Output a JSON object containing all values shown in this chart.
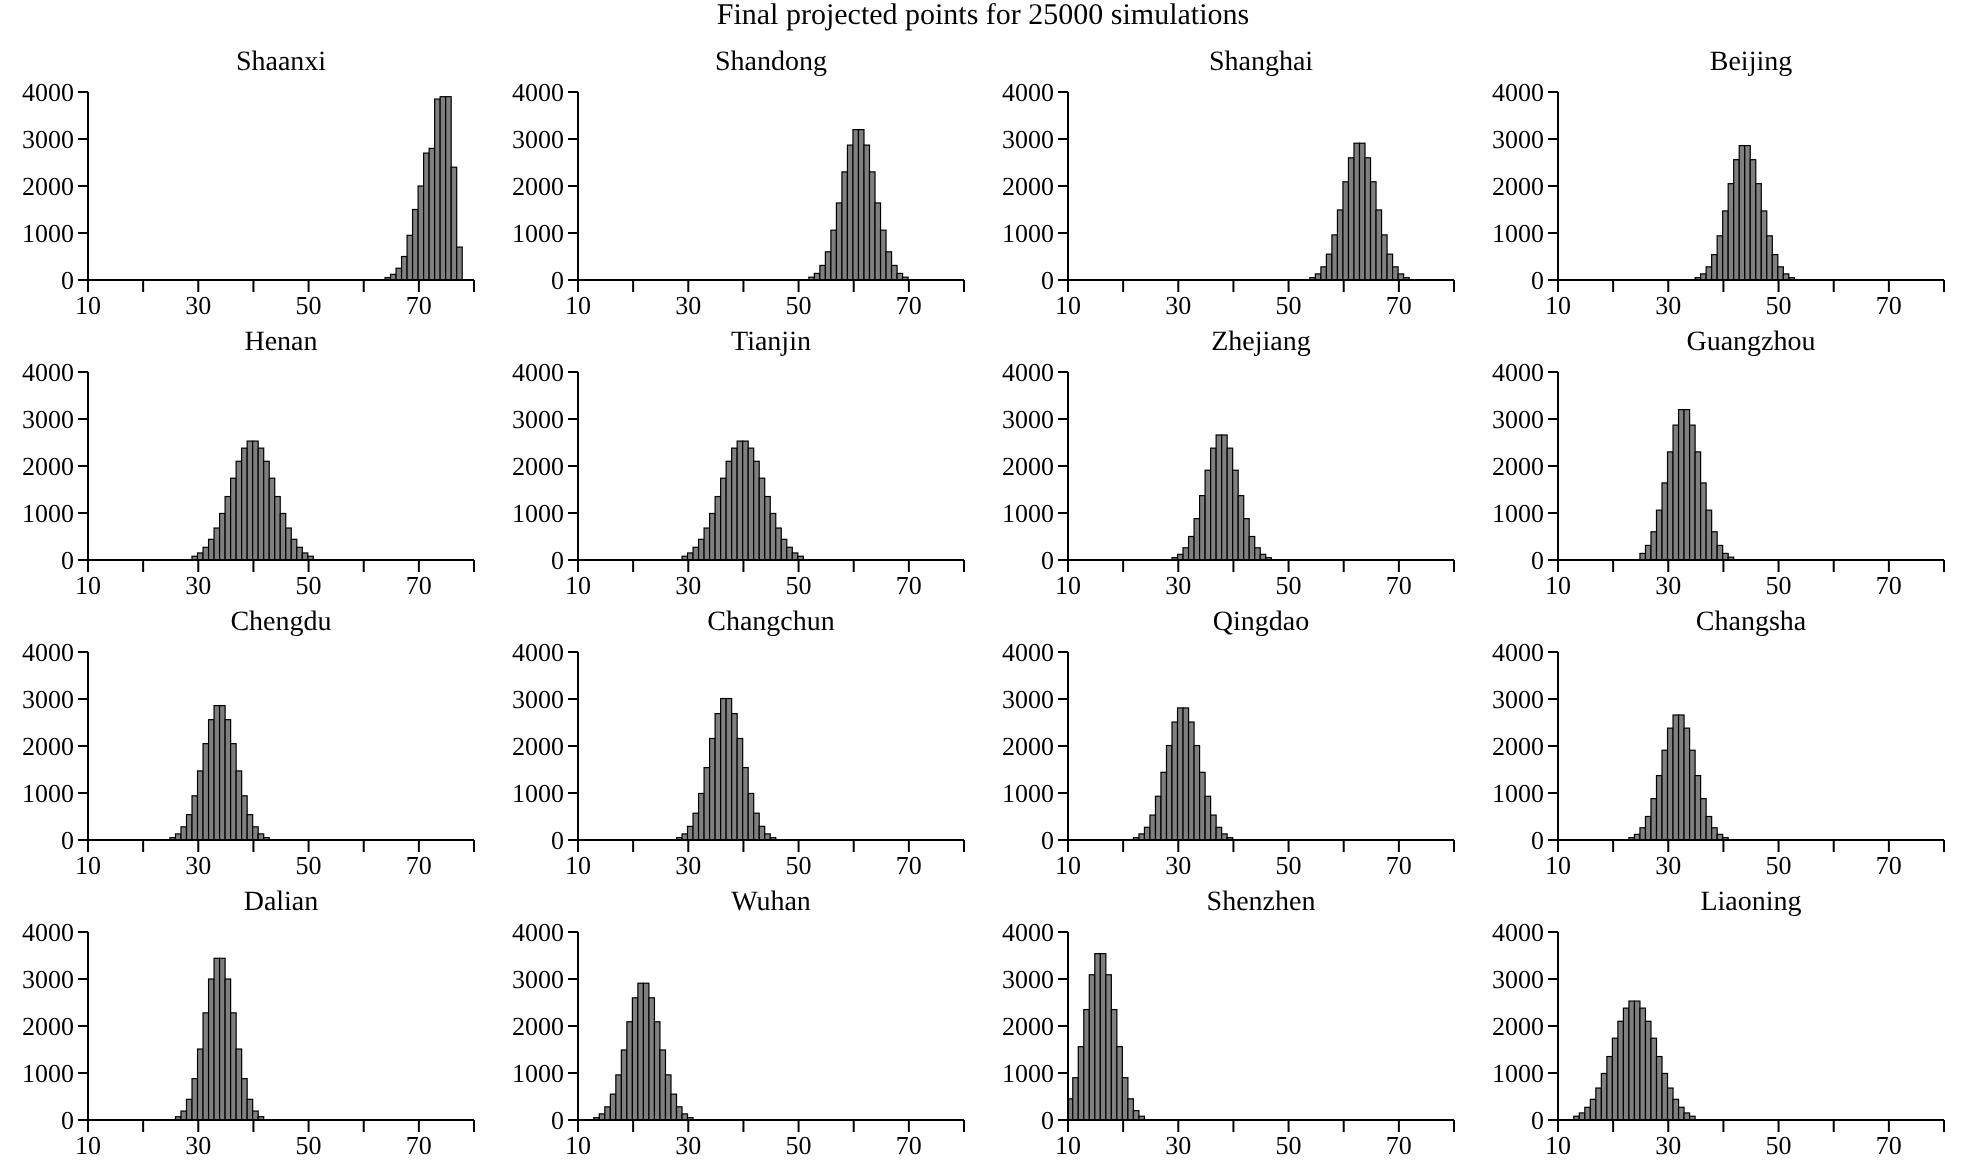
{
  "chart_data": [
    {
      "type": "other",
      "title": "Final projected points for 25000 simulations"
    },
    {
      "type": "histogram",
      "title": "Shaanxi",
      "color": "#808080",
      "xlim": [
        10,
        80
      ],
      "xticks": [
        10,
        {
          "value": 20,
          "label": null
        },
        30,
        {
          "value": 40,
          "label": null
        },
        50,
        {
          "value": 60,
          "label": null
        },
        70,
        {
          "value": 80,
          "label": null
        }
      ],
      "ylim": [
        0,
        4000
      ],
      "yticks": [
        0,
        1000,
        2000,
        3000,
        4000
      ],
      "bins": [
        64,
        65,
        66,
        67,
        68,
        69,
        70,
        71,
        72,
        73,
        74,
        75,
        76,
        77,
        78
      ],
      "values": [
        50,
        120,
        250,
        500,
        950,
        1500,
        2000,
        2700,
        2800,
        3850,
        3900,
        3900,
        2400,
        700
      ]
    },
    {
      "type": "histogram",
      "title": "Shandong",
      "color": "#808080",
      "xlim": [
        10,
        80
      ],
      "xticks": [
        10,
        {
          "value": 20,
          "label": null
        },
        30,
        {
          "value": 40,
          "label": null
        },
        50,
        {
          "value": 60,
          "label": null
        },
        70,
        {
          "value": 80,
          "label": null
        }
      ],
      "ylim": [
        0,
        4000
      ],
      "yticks": [
        0,
        1000,
        2000,
        3000,
        4000
      ],
      "bins": [
        52,
        53,
        54,
        55,
        56,
        57,
        58,
        59,
        60,
        61,
        62,
        63,
        64,
        65,
        66,
        67,
        68,
        69,
        70
      ],
      "values": [
        60,
        140,
        310,
        600,
        1060,
        1640,
        2300,
        2870,
        3200,
        3200,
        2870,
        2300,
        1640,
        1060,
        600,
        310,
        140,
        60
      ]
    },
    {
      "type": "histogram",
      "title": "Shanghai",
      "color": "#808080",
      "xlim": [
        10,
        80
      ],
      "xticks": [
        10,
        {
          "value": 20,
          "label": null
        },
        30,
        {
          "value": 40,
          "label": null
        },
        50,
        {
          "value": 60,
          "label": null
        },
        70,
        {
          "value": 80,
          "label": null
        }
      ],
      "ylim": [
        0,
        4000
      ],
      "yticks": [
        0,
        1000,
        2000,
        3000,
        4000
      ],
      "bins": [
        54,
        55,
        56,
        57,
        58,
        59,
        60,
        61,
        62,
        63,
        64,
        65,
        66,
        67,
        68,
        69,
        70,
        71,
        72
      ],
      "values": [
        50,
        130,
        280,
        550,
        960,
        1490,
        2090,
        2600,
        2910,
        2910,
        2600,
        2090,
        1490,
        960,
        550,
        280,
        130,
        50
      ]
    },
    {
      "type": "histogram",
      "title": "Beijing",
      "color": "#808080",
      "xlim": [
        10,
        80
      ],
      "xticks": [
        10,
        {
          "value": 20,
          "label": null
        },
        30,
        {
          "value": 40,
          "label": null
        },
        50,
        {
          "value": 60,
          "label": null
        },
        70,
        {
          "value": 80,
          "label": null
        }
      ],
      "ylim": [
        0,
        4000
      ],
      "yticks": [
        0,
        1000,
        2000,
        3000,
        4000
      ],
      "bins": [
        35,
        36,
        37,
        38,
        39,
        40,
        41,
        42,
        43,
        44,
        45,
        46,
        47,
        48,
        49,
        50,
        51,
        52,
        53
      ],
      "values": [
        50,
        130,
        280,
        540,
        940,
        1470,
        2050,
        2560,
        2860,
        2860,
        2560,
        2050,
        1470,
        940,
        540,
        280,
        130,
        50
      ]
    },
    {
      "type": "histogram",
      "title": "Henan",
      "color": "#808080",
      "xlim": [
        10,
        80
      ],
      "xticks": [
        10,
        {
          "value": 20,
          "label": null
        },
        30,
        {
          "value": 40,
          "label": null
        },
        50,
        {
          "value": 60,
          "label": null
        },
        70,
        {
          "value": 80,
          "label": null
        }
      ],
      "ylim": [
        0,
        4000
      ],
      "yticks": [
        0,
        1000,
        2000,
        3000,
        4000
      ],
      "bins": [
        29,
        30,
        31,
        32,
        33,
        34,
        35,
        36,
        37,
        38,
        39,
        40,
        41,
        42,
        43,
        44,
        45,
        46,
        47,
        48,
        49,
        50,
        51
      ],
      "values": [
        80,
        150,
        270,
        440,
        680,
        990,
        1350,
        1740,
        2100,
        2380,
        2530,
        2530,
        2380,
        2100,
        1740,
        1350,
        990,
        680,
        440,
        270,
        150,
        80
      ]
    },
    {
      "type": "histogram",
      "title": "Tianjin",
      "color": "#808080",
      "xlim": [
        10,
        80
      ],
      "xticks": [
        10,
        {
          "value": 20,
          "label": null
        },
        30,
        {
          "value": 40,
          "label": null
        },
        50,
        {
          "value": 60,
          "label": null
        },
        70,
        {
          "value": 80,
          "label": null
        }
      ],
      "ylim": [
        0,
        4000
      ],
      "yticks": [
        0,
        1000,
        2000,
        3000,
        4000
      ],
      "bins": [
        29,
        30,
        31,
        32,
        33,
        34,
        35,
        36,
        37,
        38,
        39,
        40,
        41,
        42,
        43,
        44,
        45,
        46,
        47,
        48,
        49,
        50,
        51
      ],
      "values": [
        80,
        150,
        270,
        440,
        680,
        990,
        1350,
        1740,
        2100,
        2380,
        2530,
        2530,
        2380,
        2100,
        1740,
        1350,
        990,
        680,
        440,
        270,
        150,
        80
      ]
    },
    {
      "type": "histogram",
      "title": "Zhejiang",
      "color": "#808080",
      "xlim": [
        10,
        80
      ],
      "xticks": [
        10,
        {
          "value": 20,
          "label": null
        },
        30,
        {
          "value": 40,
          "label": null
        },
        50,
        {
          "value": 60,
          "label": null
        },
        70,
        {
          "value": 80,
          "label": null
        }
      ],
      "ylim": [
        0,
        4000
      ],
      "yticks": [
        0,
        1000,
        2000,
        3000,
        4000
      ],
      "bins": [
        29,
        30,
        31,
        32,
        33,
        34,
        35,
        36,
        37,
        38,
        39,
        40,
        41,
        42,
        43,
        44,
        45,
        46,
        47
      ],
      "values": [
        50,
        120,
        260,
        500,
        880,
        1370,
        1910,
        2380,
        2660,
        2660,
        2380,
        1910,
        1370,
        880,
        500,
        260,
        120,
        50
      ]
    },
    {
      "type": "histogram",
      "title": "Guangzhou",
      "color": "#808080",
      "xlim": [
        10,
        80
      ],
      "xticks": [
        10,
        {
          "value": 20,
          "label": null
        },
        30,
        {
          "value": 40,
          "label": null
        },
        50,
        {
          "value": 60,
          "label": null
        },
        70,
        {
          "value": 80,
          "label": null
        }
      ],
      "ylim": [
        0,
        4000
      ],
      "yticks": [
        0,
        1000,
        2000,
        3000,
        4000
      ],
      "bins": [
        25,
        26,
        27,
        28,
        29,
        30,
        31,
        32,
        33,
        34,
        35,
        36,
        37,
        38,
        39,
        40,
        41,
        42
      ],
      "values": [
        140,
        310,
        600,
        1060,
        1640,
        2300,
        2870,
        3200,
        3200,
        2870,
        2300,
        1640,
        1060,
        600,
        310,
        140,
        60
      ]
    },
    {
      "type": "histogram",
      "title": "Chengdu",
      "color": "#808080",
      "xlim": [
        10,
        80
      ],
      "xticks": [
        10,
        {
          "value": 20,
          "label": null
        },
        30,
        {
          "value": 40,
          "label": null
        },
        50,
        {
          "value": 60,
          "label": null
        },
        70,
        {
          "value": 80,
          "label": null
        }
      ],
      "ylim": [
        0,
        4000
      ],
      "yticks": [
        0,
        1000,
        2000,
        3000,
        4000
      ],
      "bins": [
        25,
        26,
        27,
        28,
        29,
        30,
        31,
        32,
        33,
        34,
        35,
        36,
        37,
        38,
        39,
        40,
        41,
        42,
        43
      ],
      "values": [
        50,
        130,
        280,
        540,
        940,
        1470,
        2050,
        2560,
        2860,
        2860,
        2560,
        2050,
        1470,
        940,
        540,
        280,
        130,
        50
      ]
    },
    {
      "type": "histogram",
      "title": "Changchun",
      "color": "#808080",
      "xlim": [
        10,
        80
      ],
      "xticks": [
        10,
        {
          "value": 20,
          "label": null
        },
        30,
        {
          "value": 40,
          "label": null
        },
        50,
        {
          "value": 60,
          "label": null
        },
        70,
        {
          "value": 80,
          "label": null
        }
      ],
      "ylim": [
        0,
        4000
      ],
      "yticks": [
        0,
        1000,
        2000,
        3000,
        4000
      ],
      "bins": [
        28,
        29,
        30,
        31,
        32,
        33,
        34,
        35,
        36,
        37,
        38,
        39,
        40,
        41,
        42,
        43,
        44,
        45,
        46
      ],
      "values": [
        50,
        130,
        290,
        570,
        990,
        1540,
        2160,
        2690,
        3010,
        3010,
        2690,
        2160,
        1540,
        990,
        570,
        290,
        130,
        50
      ]
    },
    {
      "type": "histogram",
      "title": "Qingdao",
      "color": "#808080",
      "xlim": [
        10,
        80
      ],
      "xticks": [
        10,
        {
          "value": 20,
          "label": null
        },
        30,
        {
          "value": 40,
          "label": null
        },
        50,
        {
          "value": 60,
          "label": null
        },
        70,
        {
          "value": 80,
          "label": null
        }
      ],
      "ylim": [
        0,
        4000
      ],
      "yticks": [
        0,
        1000,
        2000,
        3000,
        4000
      ],
      "bins": [
        22,
        23,
        24,
        25,
        26,
        27,
        28,
        29,
        30,
        31,
        32,
        33,
        34,
        35,
        36,
        37,
        38,
        39,
        40
      ],
      "values": [
        50,
        130,
        270,
        530,
        930,
        1440,
        2010,
        2510,
        2810,
        2810,
        2510,
        2010,
        1440,
        930,
        530,
        270,
        130,
        50
      ]
    },
    {
      "type": "histogram",
      "title": "Changsha",
      "color": "#808080",
      "xlim": [
        10,
        80
      ],
      "xticks": [
        10,
        {
          "value": 20,
          "label": null
        },
        30,
        {
          "value": 40,
          "label": null
        },
        50,
        {
          "value": 60,
          "label": null
        },
        70,
        {
          "value": 80,
          "label": null
        }
      ],
      "ylim": [
        0,
        4000
      ],
      "yticks": [
        0,
        1000,
        2000,
        3000,
        4000
      ],
      "bins": [
        23,
        24,
        25,
        26,
        27,
        28,
        29,
        30,
        31,
        32,
        33,
        34,
        35,
        36,
        37,
        38,
        39,
        40,
        41
      ],
      "values": [
        50,
        120,
        260,
        500,
        880,
        1370,
        1910,
        2380,
        2660,
        2660,
        2380,
        1910,
        1370,
        880,
        500,
        260,
        120,
        50
      ]
    },
    {
      "type": "histogram",
      "title": "Dalian",
      "color": "#808080",
      "xlim": [
        10,
        80
      ],
      "xticks": [
        10,
        {
          "value": 20,
          "label": null
        },
        30,
        {
          "value": 40,
          "label": null
        },
        50,
        {
          "value": 60,
          "label": null
        },
        70,
        {
          "value": 80,
          "label": null
        }
      ],
      "ylim": [
        0,
        4000
      ],
      "yticks": [
        0,
        1000,
        2000,
        3000,
        4000
      ],
      "bins": [
        26,
        27,
        28,
        29,
        30,
        31,
        32,
        33,
        34,
        35,
        36,
        37,
        38,
        39,
        40,
        41,
        42
      ],
      "values": [
        70,
        190,
        440,
        880,
        1510,
        2280,
        3000,
        3440,
        3440,
        3000,
        2280,
        1510,
        880,
        440,
        190,
        70
      ]
    },
    {
      "type": "histogram",
      "title": "Wuhan",
      "color": "#808080",
      "xlim": [
        10,
        80
      ],
      "xticks": [
        10,
        {
          "value": 20,
          "label": null
        },
        30,
        {
          "value": 40,
          "label": null
        },
        50,
        {
          "value": 60,
          "label": null
        },
        70,
        {
          "value": 80,
          "label": null
        }
      ],
      "ylim": [
        0,
        4000
      ],
      "yticks": [
        0,
        1000,
        2000,
        3000,
        4000
      ],
      "bins": [
        13,
        14,
        15,
        16,
        17,
        18,
        19,
        20,
        21,
        22,
        23,
        24,
        25,
        26,
        27,
        28,
        29,
        30,
        31
      ],
      "values": [
        50,
        130,
        280,
        550,
        960,
        1490,
        2090,
        2600,
        2910,
        2910,
        2600,
        2090,
        1490,
        960,
        550,
        280,
        130,
        50
      ]
    },
    {
      "type": "histogram",
      "title": "Shenzhen",
      "color": "#808080",
      "xlim": [
        10,
        80
      ],
      "xticks": [
        10,
        {
          "value": 20,
          "label": null
        },
        30,
        {
          "value": 40,
          "label": null
        },
        50,
        {
          "value": 60,
          "label": null
        },
        70,
        {
          "value": 80,
          "label": null
        }
      ],
      "ylim": [
        0,
        4000
      ],
      "yticks": [
        0,
        1000,
        2000,
        3000,
        4000
      ],
      "bins": [
        10,
        11,
        12,
        13,
        14,
        15,
        16,
        17,
        18,
        19,
        20,
        21,
        22,
        23,
        24
      ],
      "values": [
        450,
        900,
        1560,
        2350,
        3090,
        3540,
        3540,
        3090,
        2350,
        1560,
        900,
        450,
        200,
        80
      ]
    },
    {
      "type": "histogram",
      "title": "Liaoning",
      "color": "#808080",
      "xlim": [
        10,
        80
      ],
      "xticks": [
        10,
        {
          "value": 20,
          "label": null
        },
        30,
        {
          "value": 40,
          "label": null
        },
        50,
        {
          "value": 60,
          "label": null
        },
        70,
        {
          "value": 80,
          "label": null
        }
      ],
      "ylim": [
        0,
        4000
      ],
      "yticks": [
        0,
        1000,
        2000,
        3000,
        4000
      ],
      "bins": [
        13,
        14,
        15,
        16,
        17,
        18,
        19,
        20,
        21,
        22,
        23,
        24,
        25,
        26,
        27,
        28,
        29,
        30,
        31,
        32,
        33,
        34,
        35
      ],
      "values": [
        80,
        150,
        270,
        440,
        680,
        990,
        1350,
        1740,
        2100,
        2380,
        2530,
        2530,
        2380,
        2100,
        1740,
        1350,
        990,
        680,
        440,
        270,
        150,
        80
      ]
    }
  ]
}
